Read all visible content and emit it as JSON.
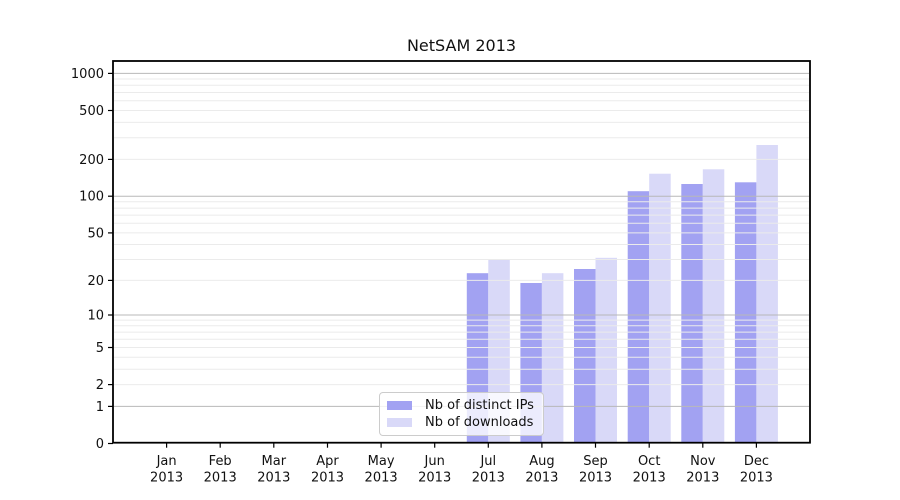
{
  "chart_data": {
    "type": "bar",
    "title": "NetSAM 2013",
    "categories": [
      "Jan 2013",
      "Feb 2013",
      "Mar 2013",
      "Apr 2013",
      "May 2013",
      "Jun 2013",
      "Jul 2013",
      "Aug 2013",
      "Sep 2013",
      "Oct 2013",
      "Nov 2013",
      "Dec 2013"
    ],
    "series": [
      {
        "name": "Nb of distinct IPs",
        "color": "#a2a2f2",
        "values": [
          0,
          0,
          0,
          0,
          0,
          0,
          23,
          19,
          25,
          110,
          126,
          130
        ]
      },
      {
        "name": "Nb of downloads",
        "color": "#d9d9f8",
        "values": [
          0,
          0,
          0,
          0,
          0,
          0,
          30,
          23,
          31,
          153,
          166,
          262
        ]
      }
    ],
    "xlabel": "",
    "ylabel": "",
    "yscale": "symlog",
    "y_ticks": [
      1000,
      500,
      200,
      100,
      50,
      20,
      10,
      5,
      2,
      1,
      0
    ],
    "ylim": [
      0,
      1260
    ],
    "grid": "on",
    "grid_major_at": [
      1,
      10,
      100,
      1000
    ],
    "legend_position": "lower center",
    "axis_color": "#000000",
    "major_grid_color": "#b8b8b8",
    "minor_grid_color": "#ebebeb"
  }
}
